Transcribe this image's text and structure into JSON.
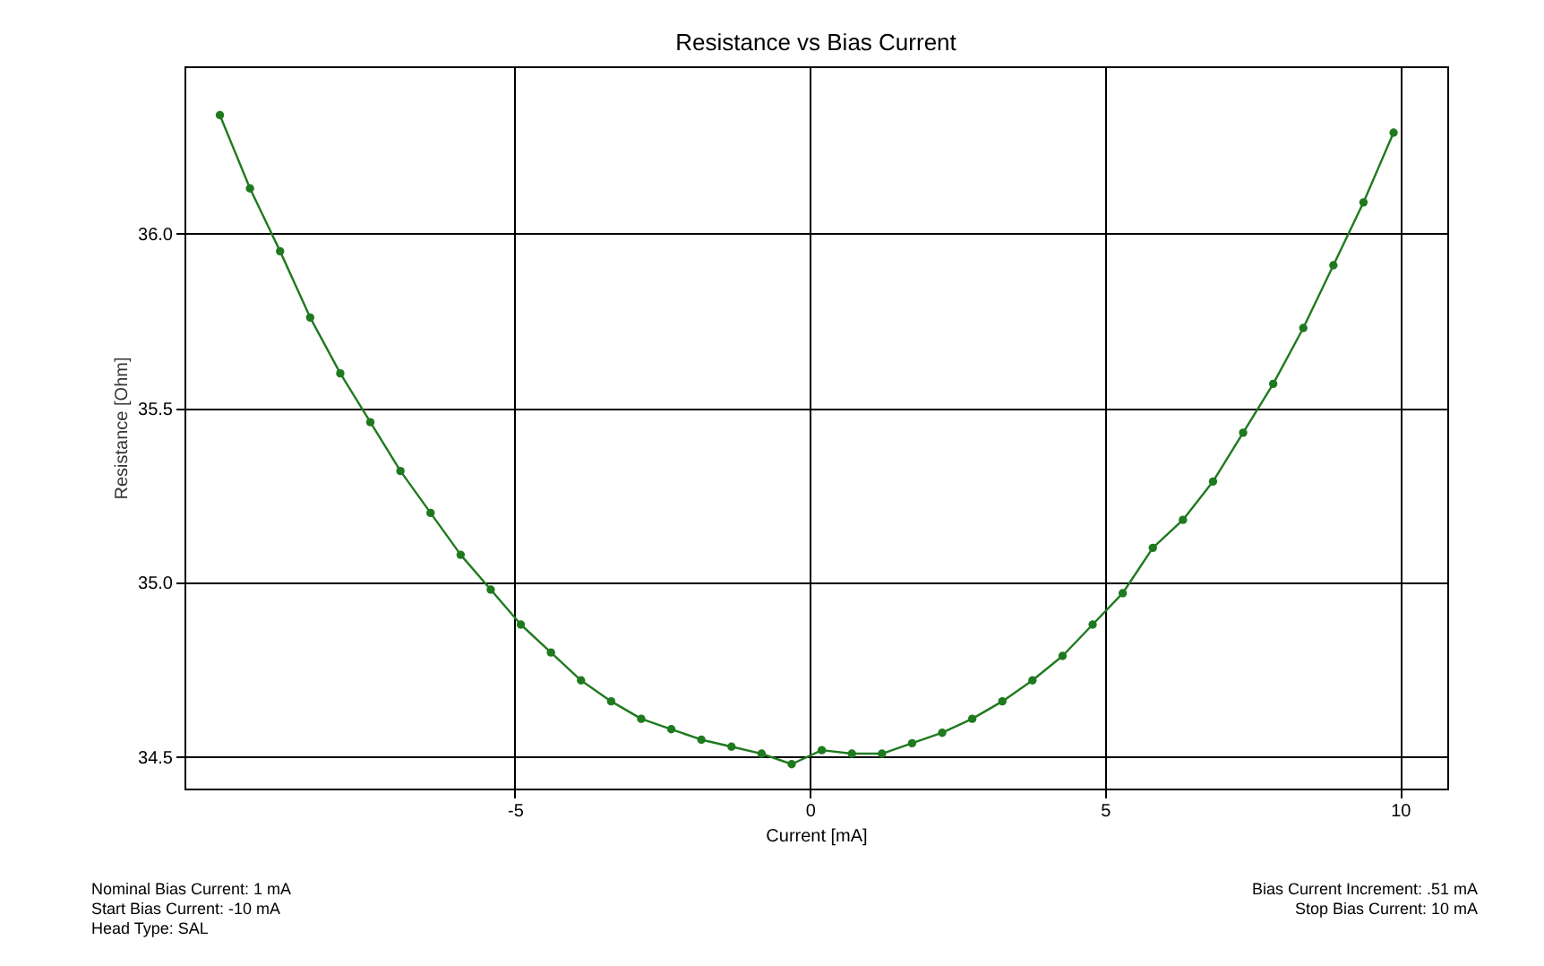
{
  "chart_data": {
    "type": "line",
    "title": "Resistance vs Bias Current",
    "xlabel": "Current [mA]",
    "ylabel": "Resistance [Ohm]",
    "x": [
      -10,
      -9.49,
      -8.98,
      -8.47,
      -7.96,
      -7.45,
      -6.94,
      -6.43,
      -5.92,
      -5.41,
      -4.9,
      -4.39,
      -3.88,
      -3.37,
      -2.86,
      -2.35,
      -1.84,
      -1.33,
      -0.82,
      -0.31,
      0.2,
      0.71,
      1.22,
      1.73,
      2.24,
      2.75,
      3.26,
      3.77,
      4.28,
      4.79,
      5.3,
      5.81,
      6.32,
      6.83,
      7.34,
      7.85,
      8.36,
      8.87,
      9.38,
      9.89
    ],
    "series": [
      {
        "color": "#1f7a1f",
        "values": [
          36.34,
          36.13,
          35.95,
          35.76,
          35.6,
          35.46,
          35.32,
          35.2,
          35.08,
          34.98,
          34.88,
          34.8,
          34.72,
          34.66,
          34.61,
          34.58,
          34.55,
          34.53,
          34.51,
          34.48,
          34.52,
          34.51,
          34.51,
          34.54,
          34.57,
          34.61,
          34.66,
          34.72,
          34.79,
          34.88,
          34.97,
          35.1,
          35.18,
          35.29,
          35.43,
          35.57,
          35.73,
          35.91,
          36.09,
          36.29
        ]
      }
    ],
    "xlim": [
      -10.6,
      10.8
    ],
    "xticks": [
      -5,
      0,
      5,
      10
    ],
    "ylim": [
      34.41,
      36.48
    ],
    "yticks": [
      {
        "value": 34.5,
        "label": "34.5"
      },
      {
        "value": 35,
        "label": "35.0"
      },
      {
        "value": 35.5,
        "label": "35.5"
      },
      {
        "value": 36,
        "label": "36.0"
      }
    ],
    "grid": true,
    "marker": "circle",
    "line_style": "solid",
    "annotations": [
      "Nominal Bias Current: 1 mA",
      "Start Bias Current: -10 mA",
      "Head Type: SAL",
      "Bias Current Increment: .51 mA",
      "Stop Bias Current: 10 mA"
    ]
  }
}
